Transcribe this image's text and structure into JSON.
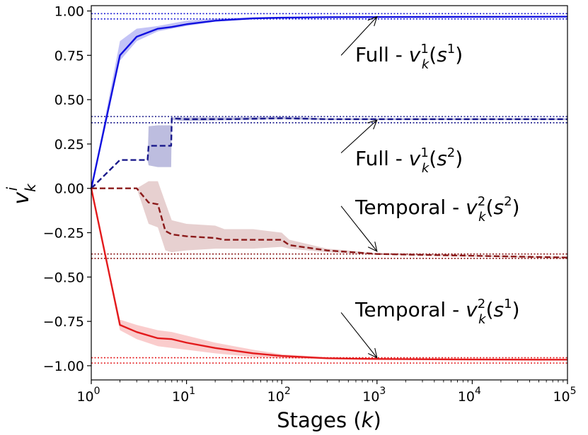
{
  "chart_data": {
    "type": "line",
    "title": "",
    "xlabel": "Stages (k)",
    "ylabel": "v_k^i",
    "xscale": "log",
    "xlim": [
      1,
      100000
    ],
    "ylim": [
      -1.08,
      1.03
    ],
    "xticks": [
      {
        "value": 1,
        "base": "10",
        "exp": "0"
      },
      {
        "value": 10,
        "base": "10",
        "exp": "1"
      },
      {
        "value": 100,
        "base": "10",
        "exp": "2"
      },
      {
        "value": 1000,
        "base": "10",
        "exp": "3"
      },
      {
        "value": 10000,
        "base": "10",
        "exp": "4"
      },
      {
        "value": 100000,
        "base": "10",
        "exp": "5"
      }
    ],
    "yticks": [
      {
        "value": 1.0,
        "label": "1.00"
      },
      {
        "value": 0.75,
        "label": "0.75"
      },
      {
        "value": 0.5,
        "label": "0.50"
      },
      {
        "value": 0.25,
        "label": "0.25"
      },
      {
        "value": 0.0,
        "label": "0.00"
      },
      {
        "value": -0.25,
        "label": "−0.25"
      },
      {
        "value": -0.5,
        "label": "−0.50"
      },
      {
        "value": -0.75,
        "label": "−0.75"
      },
      {
        "value": -1.0,
        "label": "−1.00"
      }
    ],
    "reference_lines": [
      {
        "y": 0.985,
        "color": "#1f1fd6"
      },
      {
        "y": 0.955,
        "color": "#1f1fd6"
      },
      {
        "y": 0.405,
        "color": "#1a1a8c"
      },
      {
        "y": 0.37,
        "color": "#1a1a8c"
      },
      {
        "y": -0.37,
        "color": "#8b1a1a"
      },
      {
        "y": -0.395,
        "color": "#8b1a1a"
      },
      {
        "y": -0.955,
        "color": "#e31a1c"
      },
      {
        "y": -0.985,
        "color": "#e31a1c"
      }
    ],
    "series": [
      {
        "name": "Full - v_k^1(s^1)",
        "color": "#1010e0",
        "fill": "#6a6ae8",
        "dash": "solid",
        "x": [
          1,
          2,
          3,
          5,
          7,
          10,
          20,
          50,
          100,
          300,
          1000,
          10000,
          100000
        ],
        "y": [
          0.0,
          0.75,
          0.855,
          0.9,
          0.91,
          0.925,
          0.945,
          0.958,
          0.962,
          0.965,
          0.966,
          0.967,
          0.968
        ],
        "lower": [
          0.0,
          0.72,
          0.83,
          0.885,
          0.9,
          0.915,
          0.94,
          0.955,
          0.96,
          0.963,
          0.965,
          0.966,
          0.967
        ],
        "upper": [
          0.0,
          0.83,
          0.9,
          0.915,
          0.93,
          0.945,
          0.958,
          0.965,
          0.967,
          0.968,
          0.969,
          0.969,
          0.97
        ]
      },
      {
        "name": "Full - v_k^1(s^2)",
        "color": "#1a1a8c",
        "fill": "#5a5ab0",
        "dash": "dashed",
        "x": [
          1,
          2,
          3,
          3.9,
          4,
          5,
          6.9,
          7,
          10,
          30,
          100,
          300,
          1000,
          10000,
          100000
        ],
        "y": [
          0.0,
          0.16,
          0.16,
          0.16,
          0.24,
          0.24,
          0.24,
          0.395,
          0.39,
          0.39,
          0.395,
          0.39,
          0.39,
          0.39,
          0.39
        ],
        "lower": [
          0.0,
          0.16,
          0.16,
          0.16,
          0.13,
          0.12,
          0.12,
          0.385,
          0.38,
          0.385,
          0.39,
          0.385,
          0.385,
          0.385,
          0.385
        ],
        "upper": [
          0.0,
          0.16,
          0.16,
          0.16,
          0.35,
          0.355,
          0.355,
          0.4,
          0.4,
          0.4,
          0.405,
          0.395,
          0.395,
          0.395,
          0.395
        ]
      },
      {
        "name": "Temporal - v_k^2(s^2)",
        "color": "#8b1a1a",
        "fill": "#c48a8a",
        "dash": "dashed",
        "x": [
          1,
          2,
          3,
          4,
          5,
          6,
          7,
          10,
          20,
          25,
          50,
          100,
          120,
          300,
          1000,
          10000,
          100000
        ],
        "y": [
          0.0,
          0.0,
          0.0,
          -0.08,
          -0.09,
          -0.24,
          -0.26,
          -0.27,
          -0.28,
          -0.29,
          -0.29,
          -0.29,
          -0.32,
          -0.35,
          -0.37,
          -0.38,
          -0.39
        ],
        "lower": [
          0.0,
          0.0,
          0.0,
          -0.2,
          -0.22,
          -0.35,
          -0.36,
          -0.35,
          -0.34,
          -0.34,
          -0.34,
          -0.33,
          -0.34,
          -0.36,
          -0.375,
          -0.385,
          -0.395
        ],
        "upper": [
          0.0,
          0.0,
          0.0,
          0.04,
          0.04,
          -0.08,
          -0.18,
          -0.2,
          -0.21,
          -0.23,
          -0.23,
          -0.25,
          -0.29,
          -0.34,
          -0.365,
          -0.375,
          -0.385
        ]
      },
      {
        "name": "Temporal - v_k^2(s^1)",
        "color": "#e31a1c",
        "fill": "#f28080",
        "dash": "solid",
        "x": [
          1,
          2,
          3,
          5,
          7,
          10,
          20,
          50,
          100,
          300,
          1000,
          10000,
          100000
        ],
        "y": [
          0.0,
          -0.77,
          -0.81,
          -0.845,
          -0.85,
          -0.87,
          -0.9,
          -0.93,
          -0.945,
          -0.958,
          -0.962,
          -0.965,
          -0.966
        ],
        "lower": [
          0.0,
          -0.8,
          -0.85,
          -0.89,
          -0.9,
          -0.91,
          -0.93,
          -0.95,
          -0.958,
          -0.963,
          -0.965,
          -0.967,
          -0.968
        ],
        "upper": [
          0.0,
          -0.74,
          -0.77,
          -0.8,
          -0.81,
          -0.83,
          -0.87,
          -0.91,
          -0.935,
          -0.953,
          -0.959,
          -0.963,
          -0.964
        ]
      }
    ],
    "annotations": [
      {
        "name": "Full",
        "tx": 420,
        "ty": 0.75,
        "ax": 1000,
        "ay": 0.968
      },
      {
        "name": "Full",
        "tx": 420,
        "ty": 0.2,
        "ax": 1000,
        "ay": 0.385
      },
      {
        "name": "Temporal",
        "tx": 420,
        "ty": -0.1,
        "ax": 1000,
        "ay": -0.355
      },
      {
        "name": "Temporal",
        "tx": 420,
        "ty": -0.7,
        "ax": 1000,
        "ay": -0.955
      }
    ]
  }
}
